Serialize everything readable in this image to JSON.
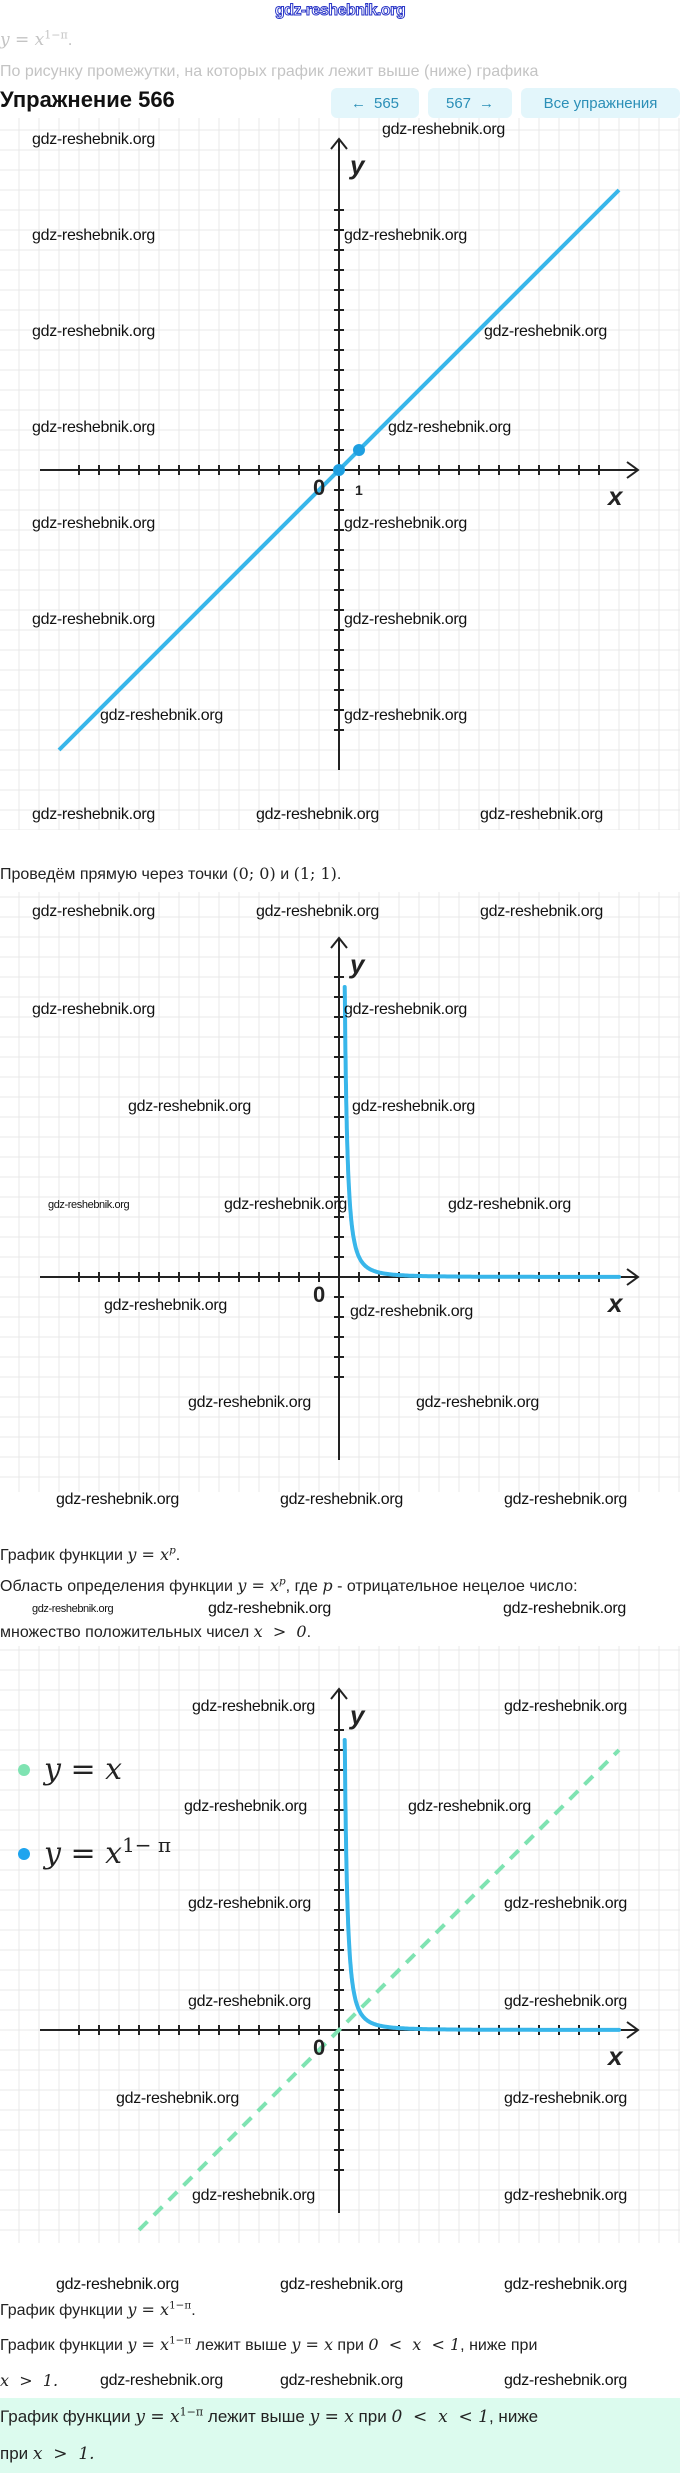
{
  "watermark": "gdz-reshebnik.org",
  "top_fragment": {
    "formula": "y = x",
    "exponent": "1−π",
    "period": ".",
    "text": "По рисунку промежутки, на которых график лежит выше (ниже) графика"
  },
  "header": {
    "title": "Упражнение 566",
    "prev_label": "565",
    "next_label": "567",
    "all_label": "Все упражнения",
    "prev_icon": "arrow-left",
    "next_icon": "arrow-right"
  },
  "colors": {
    "accent": "#2b8fb7",
    "button_bg": "#e3f6fb",
    "curve_blue": "#38b6ea",
    "line_green": "#7fe3b2",
    "answer_bg": "#dcfbee"
  },
  "axis_labels": {
    "x": "x",
    "y": "y",
    "zero": "0",
    "one": "1"
  },
  "text1": {
    "prefix": "Проведём прямую через точки",
    "p1": "(0; 0)",
    "and": "и",
    "p2": "(1; 1)",
    "end": "."
  },
  "text2": {
    "prefix": "График функции",
    "formula": "y = x",
    "exp": "p",
    "end": "."
  },
  "text3": {
    "prefix": "Область определения функции",
    "formula": "y = x",
    "exp": "p",
    "mid": ", где",
    "p": "p",
    "rest": "- отрицательное нецелое число:",
    "line2": "множество положительных чисел",
    "cond": "x  >  0",
    "end": "."
  },
  "legend": [
    {
      "label": "y = x",
      "exp": "",
      "color": "#7fe3b2"
    },
    {
      "label": "y = x",
      "exp": "1− π",
      "color": "#1ea4ee"
    }
  ],
  "text4": {
    "prefix": "График функции",
    "formula": "y = x",
    "exp": "1−π",
    "end": "."
  },
  "text5": {
    "prefix": "График функции",
    "formula": "y = x",
    "exp": "1−π",
    "mid": "лежит выше",
    "f2": "y = x",
    "when": "при",
    "cond": "0  <  x  < 1",
    "rest": ", ниже при",
    "cond2": "x  >  1."
  },
  "answer": {
    "prefix": "График функции",
    "formula": "y = x",
    "exp": "1−π",
    "mid": "лежит выше",
    "f2": "y = x",
    "when": "при",
    "cond": "0  <  x  < 1",
    "rest": ", ниже",
    "line2": "при",
    "cond2": "x  >  1."
  },
  "chart_data": [
    {
      "type": "line",
      "functions": [
        "y = x"
      ],
      "points": [
        [
          0,
          0
        ],
        [
          1,
          1
        ]
      ],
      "xlim": [
        -13,
        13
      ],
      "ylim": [
        -13,
        13
      ],
      "grid": true
    },
    {
      "type": "line",
      "functions": [
        "y = x^(1−π)"
      ],
      "xlim": [
        -13,
        13
      ],
      "ylim": [
        -5,
        15
      ],
      "grid": true
    },
    {
      "type": "line",
      "series": [
        {
          "name": "y = x",
          "function": "y = x",
          "style": "dashed",
          "color": "#7fe3b2"
        },
        {
          "name": "y = x^(1−π)",
          "function": "y = x^(1−π)",
          "style": "solid",
          "color": "#38b6ea"
        }
      ],
      "xlim": [
        -13,
        13
      ],
      "ylim": [
        -7,
        15
      ],
      "grid": true,
      "legend": "top-left"
    }
  ]
}
